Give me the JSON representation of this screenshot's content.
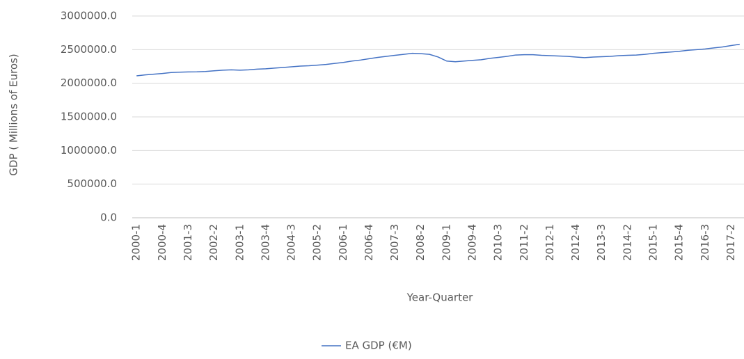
{
  "chart_data": {
    "type": "line",
    "y_label": "GDP ( Millions of Euros)",
    "x_label": "Year-Quarter",
    "categories": [
      "2000-1",
      null,
      null,
      "2000-4",
      null,
      null,
      "2001-3",
      null,
      null,
      "2002-2",
      null,
      null,
      "2003-1",
      null,
      null,
      "2003-4",
      null,
      null,
      "2004-3",
      null,
      null,
      "2005-2",
      null,
      null,
      "2006-1",
      null,
      null,
      "2006-4",
      null,
      null,
      "2007-3",
      null,
      null,
      "2008-2",
      null,
      null,
      "2009-1",
      null,
      null,
      "2009-4",
      null,
      null,
      "2010-3",
      null,
      null,
      "2011-2",
      null,
      null,
      "2012-1",
      null,
      null,
      "2012-4",
      null,
      null,
      "2013-3",
      null,
      null,
      "2014-2",
      null,
      null,
      "2015-1",
      null,
      null,
      "2015-4",
      null,
      null,
      "2016-3",
      null,
      null,
      "2017-2",
      null
    ],
    "series": [
      {
        "name": "EA GDP (€M)",
        "color": "#4472c4",
        "values": [
          2110000,
          2125000,
          2135000,
          2145000,
          2160000,
          2165000,
          2168000,
          2170000,
          2175000,
          2185000,
          2195000,
          2200000,
          2195000,
          2200000,
          2210000,
          2215000,
          2225000,
          2235000,
          2245000,
          2255000,
          2260000,
          2270000,
          2280000,
          2295000,
          2310000,
          2330000,
          2345000,
          2365000,
          2385000,
          2400000,
          2415000,
          2430000,
          2445000,
          2440000,
          2430000,
          2390000,
          2330000,
          2320000,
          2330000,
          2340000,
          2350000,
          2370000,
          2385000,
          2400000,
          2420000,
          2425000,
          2425000,
          2415000,
          2410000,
          2405000,
          2400000,
          2390000,
          2380000,
          2390000,
          2395000,
          2400000,
          2410000,
          2415000,
          2420000,
          2430000,
          2445000,
          2455000,
          2465000,
          2475000,
          2490000,
          2500000,
          2510000,
          2525000,
          2540000,
          2560000,
          2580000
        ]
      }
    ],
    "ylim": [
      0,
      3000000
    ],
    "yticks": [
      {
        "value": 0,
        "label": "0.0"
      },
      {
        "value": 500000,
        "label": "500000.0"
      },
      {
        "value": 1000000,
        "label": "1000000.0"
      },
      {
        "value": 1500000,
        "label": "1500000.0"
      },
      {
        "value": 2000000,
        "label": "2000000.0"
      },
      {
        "value": 2500000,
        "label": "2500000.0"
      },
      {
        "value": 3000000,
        "label": "3000000.0"
      }
    ],
    "grid": true,
    "legend": "bottom"
  }
}
